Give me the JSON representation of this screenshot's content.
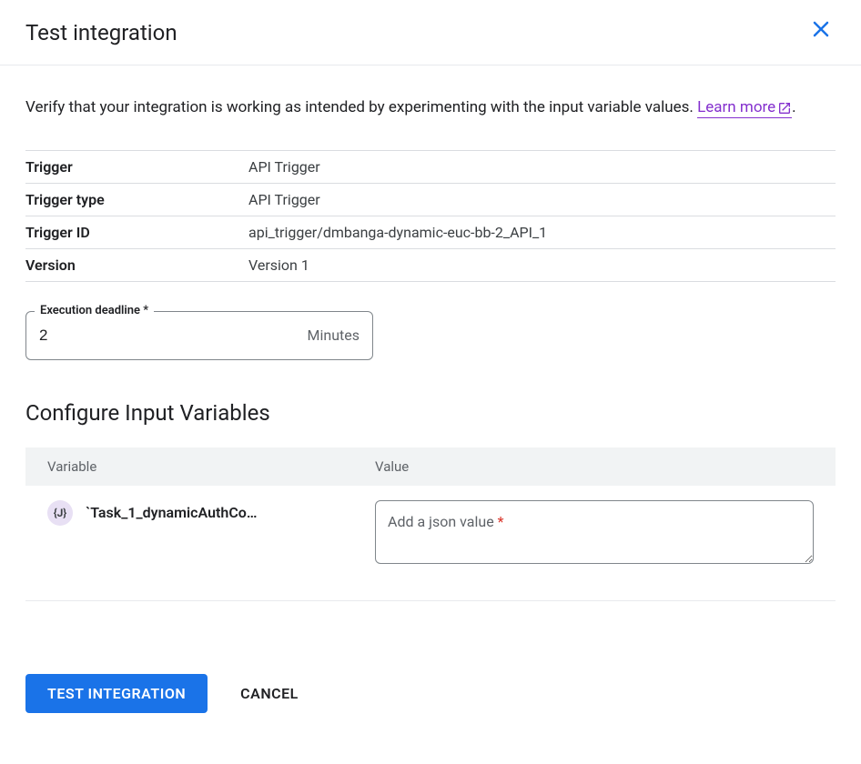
{
  "header": {
    "title": "Test integration"
  },
  "body": {
    "description_prefix": "Verify that your integration is working as intended by experimenting with the input variable values. ",
    "learn_more_label": "Learn more",
    "description_suffix": ".",
    "details": {
      "rows": [
        {
          "label": "Trigger",
          "value": "API Trigger"
        },
        {
          "label": "Trigger type",
          "value": "API Trigger"
        },
        {
          "label": "Trigger ID",
          "value": "api_trigger/dmbanga-dynamic-euc-bb-2_API_1"
        },
        {
          "label": "Version",
          "value": "Version 1"
        }
      ]
    },
    "execution_deadline": {
      "label": "Execution deadline *",
      "value": "2",
      "suffix": "Minutes"
    },
    "variables_section": {
      "heading": "Configure Input Variables",
      "columns": {
        "variable": "Variable",
        "value": "Value"
      },
      "rows": [
        {
          "icon_text": "{J}",
          "name": "`Task_1_dynamicAuthCo…",
          "value_placeholder_text": "Add a json value ",
          "value_required_star": "*"
        }
      ]
    }
  },
  "footer": {
    "primary_label": "TEST INTEGRATION",
    "secondary_label": "CANCEL"
  },
  "colors": {
    "primary": "#1a73e8",
    "link_visited": "#8430ce",
    "required": "#d93025",
    "border": "#dadce0"
  }
}
